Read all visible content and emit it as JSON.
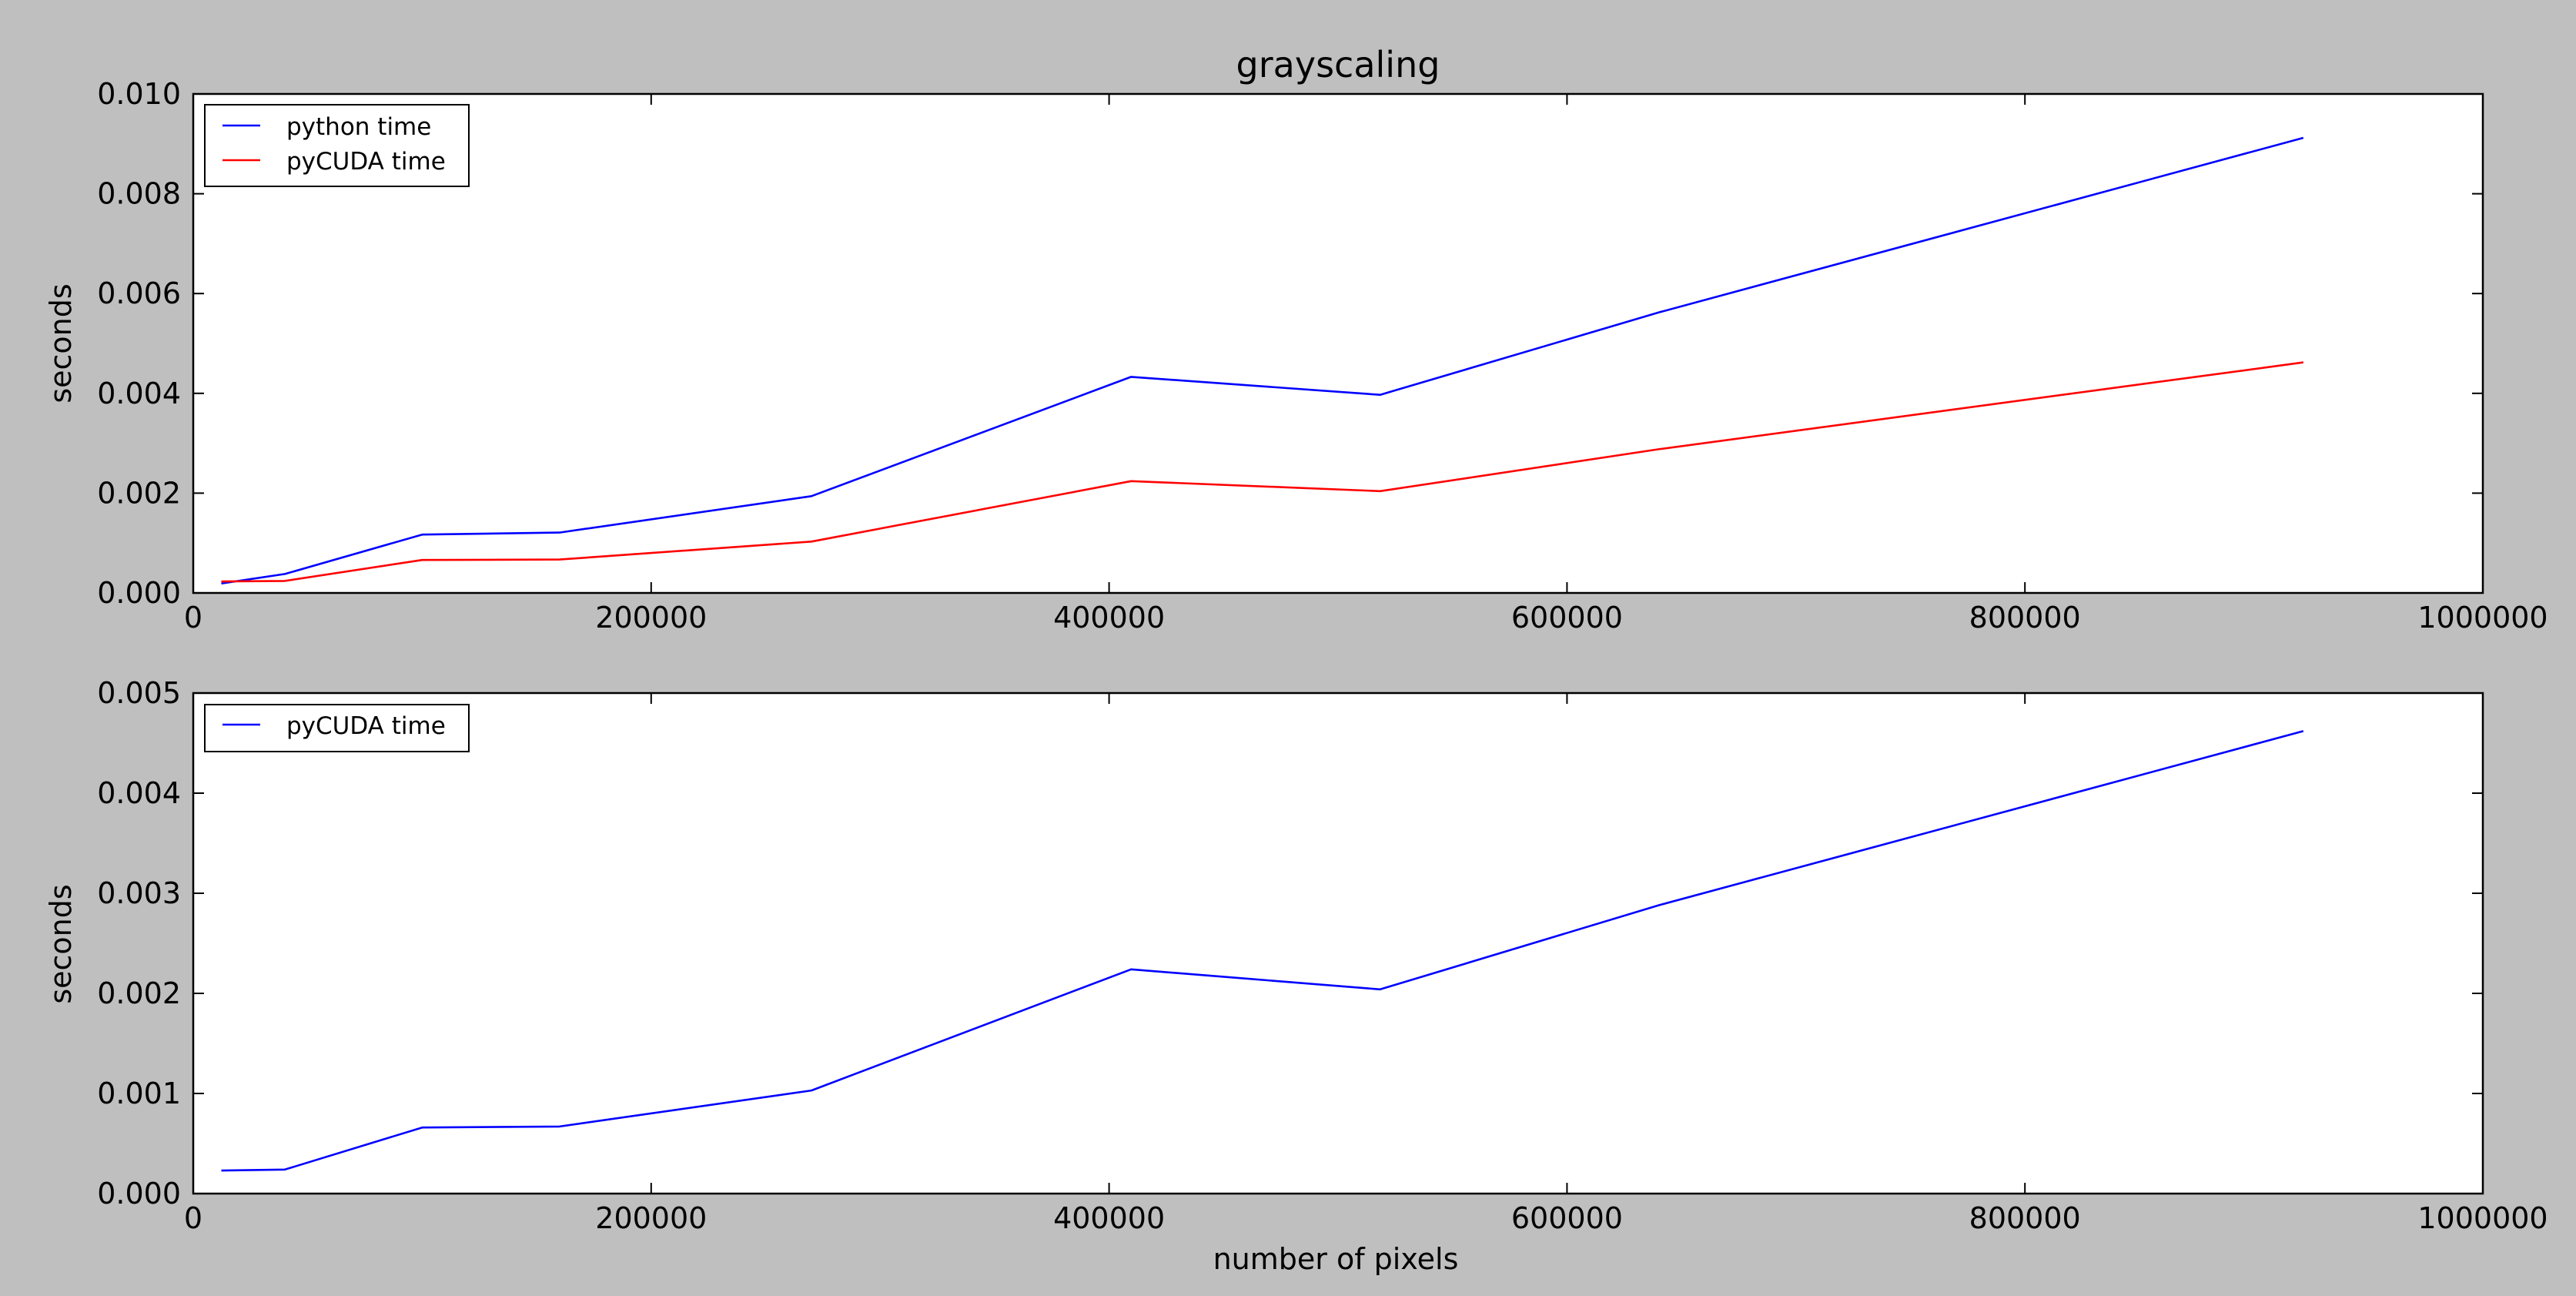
{
  "figure": {
    "background": "#bfbfbf"
  },
  "chart_data": [
    {
      "type": "line",
      "title": "grayscaling",
      "xlabel": "",
      "ylabel": "seconds",
      "xlim": [
        0,
        1000000
      ],
      "ylim": [
        0,
        0.01
      ],
      "xticks": [
        0,
        200000,
        400000,
        600000,
        800000,
        1000000
      ],
      "xtick_labels": [
        "0",
        "200000",
        "400000",
        "600000",
        "800000",
        "1000000"
      ],
      "yticks": [
        0.0,
        0.002,
        0.004,
        0.006,
        0.008,
        0.01
      ],
      "ytick_labels": [
        "0.000",
        "0.002",
        "0.004",
        "0.006",
        "0.008",
        "0.010"
      ],
      "grid": false,
      "legend": "top-left",
      "x": [
        12288,
        40000,
        100000,
        160000,
        270000,
        409600,
        518400,
        640000,
        921600
      ],
      "series": [
        {
          "name": "python time",
          "color": "#0000ff",
          "values": [
            0.00019,
            0.00038,
            0.00117,
            0.00121,
            0.00194,
            0.00433,
            0.00397,
            0.00562,
            0.00912
          ]
        },
        {
          "name": "pyCUDA time",
          "color": "#ff0000",
          "values": [
            0.00023,
            0.00024,
            0.00066,
            0.00067,
            0.00103,
            0.00224,
            0.00204,
            0.00288,
            0.00462
          ]
        }
      ]
    },
    {
      "type": "line",
      "title": "",
      "xlabel": "number of pixels",
      "ylabel": "seconds",
      "xlim": [
        0,
        1000000
      ],
      "ylim": [
        0,
        0.005
      ],
      "xticks": [
        0,
        200000,
        400000,
        600000,
        800000,
        1000000
      ],
      "xtick_labels": [
        "0",
        "200000",
        "400000",
        "600000",
        "800000",
        "1000000"
      ],
      "yticks": [
        0.0,
        0.001,
        0.002,
        0.003,
        0.004,
        0.005
      ],
      "ytick_labels": [
        "0.000",
        "0.001",
        "0.002",
        "0.003",
        "0.004",
        "0.005"
      ],
      "grid": false,
      "legend": "top-left",
      "x": [
        12288,
        40000,
        100000,
        160000,
        270000,
        409600,
        518400,
        640000,
        921600
      ],
      "series": [
        {
          "name": "pyCUDA time",
          "color": "#0000ff",
          "values": [
            0.00023,
            0.00024,
            0.00066,
            0.00067,
            0.00103,
            0.00224,
            0.00204,
            0.00288,
            0.00462
          ]
        }
      ]
    }
  ]
}
